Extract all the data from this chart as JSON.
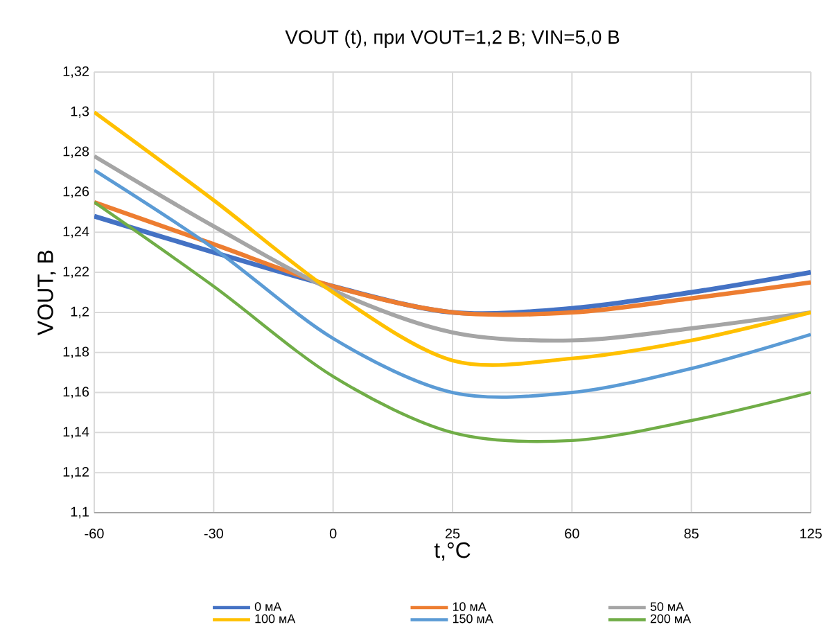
{
  "chart_data": {
    "type": "line",
    "title": "VOUT (t), при VOUT=1,2 В; VIN=5,0 В",
    "xlabel": "t,°C",
    "ylabel": "VOUT, В",
    "categories": [
      "-60",
      "-30",
      "0",
      "25",
      "60",
      "85",
      "125"
    ],
    "series": [
      {
        "name": "0 мА",
        "color": "#4472c4",
        "values": [
          1.248,
          1.23,
          1.213,
          1.2,
          1.202,
          1.21,
          1.22
        ]
      },
      {
        "name": "10 мА",
        "color": "#ed7d31",
        "values": [
          1.255,
          1.234,
          1.213,
          1.2,
          1.2,
          1.207,
          1.215
        ]
      },
      {
        "name": "50 мА",
        "color": "#a5a5a5",
        "values": [
          1.278,
          1.243,
          1.211,
          1.19,
          1.186,
          1.192,
          1.2
        ]
      },
      {
        "name": "100 мА",
        "color": "#ffc000",
        "values": [
          1.3,
          1.256,
          1.21,
          1.176,
          1.177,
          1.186,
          1.2
        ]
      },
      {
        "name": "150 мА",
        "color": "#5b9bd5",
        "values": [
          1.271,
          1.232,
          1.187,
          1.16,
          1.16,
          1.172,
          1.189
        ]
      },
      {
        "name": "200 мА",
        "color": "#70ad47",
        "values": [
          1.255,
          1.213,
          1.168,
          1.14,
          1.136,
          1.146,
          1.16
        ]
      }
    ],
    "ylim": [
      1.1,
      1.32
    ],
    "yticks": [
      {
        "value": 1.1,
        "label": "1,1"
      },
      {
        "value": 1.12,
        "label": "1,12"
      },
      {
        "value": 1.14,
        "label": "1,14"
      },
      {
        "value": 1.16,
        "label": "1,16"
      },
      {
        "value": 1.18,
        "label": "1,18"
      },
      {
        "value": 1.2,
        "label": "1,2"
      },
      {
        "value": 1.22,
        "label": "1,22"
      },
      {
        "value": 1.24,
        "label": "1,24"
      },
      {
        "value": 1.26,
        "label": "1,26"
      },
      {
        "value": 1.28,
        "label": "1,28"
      },
      {
        "value": 1.3,
        "label": "1,3"
      },
      {
        "value": 1.32,
        "label": "1,32"
      }
    ],
    "grid": true,
    "legend": "bottom",
    "line_style": "solid"
  }
}
